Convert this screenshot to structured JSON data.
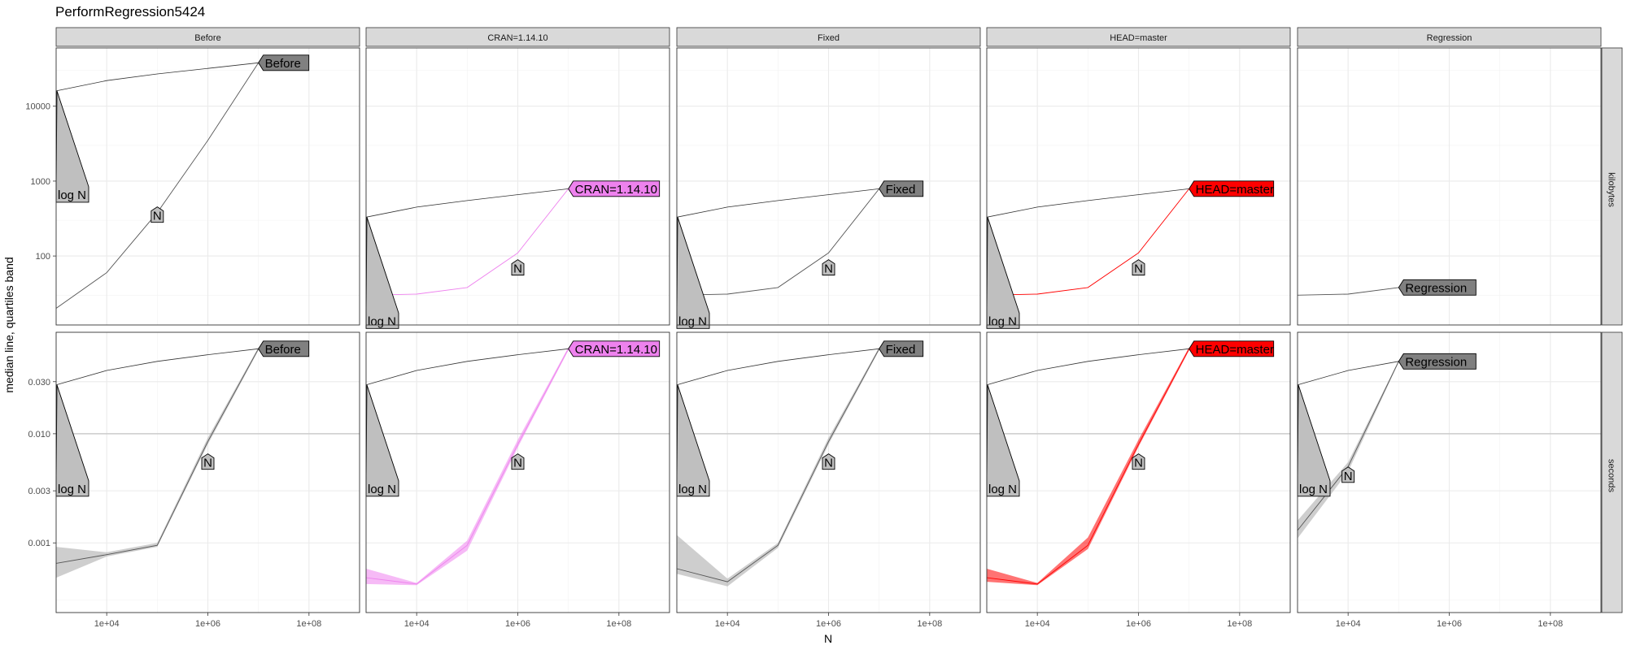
{
  "chart_data": {
    "type": "line",
    "title": "PerformRegression5424",
    "xlabel": "N",
    "ylabel": "median line, quartiles band",
    "x_scale": "log10",
    "xlim": [
      1000,
      1000000000
    ],
    "x_ticks": [
      "1e+04",
      "1e+06",
      "1e+08"
    ],
    "x_tick_values": [
      10000,
      1000000,
      100000000
    ],
    "grid": true,
    "facet_columns": [
      "Before",
      "CRAN=1.14.10",
      "Fixed",
      "HEAD=master",
      "Regression"
    ],
    "facet_rows": [
      "kilobytes",
      "seconds"
    ],
    "colors": {
      "Before": "#808080",
      "CRAN=1.14.10": "#ee82ee",
      "Fixed": "#808080",
      "HEAD=master": "#ff0000",
      "Regression": "#808080",
      "strip_fill": "#d9d9d9",
      "gray_line": "#555555",
      "gray_band": "#a6a6a6"
    },
    "rows": {
      "kilobytes": {
        "y_scale": "log10",
        "ylim": [
          12,
          60000
        ],
        "y_ticks": [
          "100",
          "1000",
          "10000"
        ],
        "y_tick_values": [
          100,
          1000,
          10000
        ],
        "hline": null
      },
      "seconds": {
        "y_scale": "log10",
        "ylim": [
          0.00023,
          0.085
        ],
        "y_ticks": [
          "0.001",
          "0.003",
          "0.010",
          "0.030"
        ],
        "y_tick_values": [
          0.001,
          0.003,
          0.01,
          0.03
        ],
        "hline": 0.01
      }
    },
    "panels": [
      {
        "col": "Before",
        "row": "kilobytes",
        "median": {
          "x": [
            1000,
            10000,
            100000,
            1000000,
            10000000
          ],
          "y": [
            20,
            60,
            380,
            3500,
            38000
          ]
        },
        "band": null,
        "ref_line": {
          "x": [
            1000,
            10000,
            100000,
            1000000,
            10000000
          ],
          "y": [
            16000,
            22000,
            27000,
            32000,
            38000
          ]
        },
        "log_n_label": {
          "text": "log N",
          "x": 1000,
          "y": 16000
        },
        "n_label": {
          "text": "N",
          "x": 100000,
          "y": 380
        },
        "series_label": {
          "text": "Before",
          "x": 10000000,
          "y": 38000
        }
      },
      {
        "col": "CRAN=1.14.10",
        "row": "kilobytes",
        "median": {
          "x": [
            1000,
            10000,
            100000,
            1000000,
            10000000
          ],
          "y": [
            30,
            31,
            38,
            110,
            790
          ]
        },
        "band": null,
        "ref_line": {
          "x": [
            1000,
            10000,
            100000,
            1000000,
            10000000
          ],
          "y": [
            330,
            450,
            550,
            660,
            790
          ]
        },
        "log_n_label": {
          "text": "log N",
          "x": 1000,
          "y": 330
        },
        "n_label": {
          "text": "N",
          "x": 1000000,
          "y": 75
        },
        "series_label": {
          "text": "CRAN=1.14.10",
          "x": 10000000,
          "y": 790
        }
      },
      {
        "col": "Fixed",
        "row": "kilobytes",
        "median": {
          "x": [
            1000,
            10000,
            100000,
            1000000,
            10000000
          ],
          "y": [
            30,
            31,
            38,
            110,
            790
          ]
        },
        "band": null,
        "ref_line": {
          "x": [
            1000,
            10000,
            100000,
            1000000,
            10000000
          ],
          "y": [
            330,
            450,
            550,
            660,
            790
          ]
        },
        "log_n_label": {
          "text": "log N",
          "x": 1000,
          "y": 330
        },
        "n_label": {
          "text": "N",
          "x": 1000000,
          "y": 75
        },
        "series_label": {
          "text": "Fixed",
          "x": 10000000,
          "y": 790
        }
      },
      {
        "col": "HEAD=master",
        "row": "kilobytes",
        "median": {
          "x": [
            1000,
            10000,
            100000,
            1000000,
            10000000
          ],
          "y": [
            30,
            31,
            38,
            110,
            790
          ]
        },
        "band": null,
        "ref_line": {
          "x": [
            1000,
            10000,
            100000,
            1000000,
            10000000
          ],
          "y": [
            330,
            450,
            550,
            660,
            790
          ]
        },
        "log_n_label": {
          "text": "log N",
          "x": 1000,
          "y": 330
        },
        "n_label": {
          "text": "N",
          "x": 1000000,
          "y": 75
        },
        "series_label": {
          "text": "HEAD=master",
          "x": 10000000,
          "y": 790
        }
      },
      {
        "col": "Regression",
        "row": "kilobytes",
        "median": {
          "x": [
            1000,
            10000,
            100000
          ],
          "y": [
            30,
            31,
            38
          ]
        },
        "band": null,
        "ref_line": null,
        "log_n_label": null,
        "n_label": null,
        "series_label": {
          "text": "Regression",
          "x": 100000,
          "y": 38
        }
      },
      {
        "col": "Before",
        "row": "seconds",
        "median": {
          "x": [
            1000,
            10000,
            100000,
            1000000,
            10000000
          ],
          "y": [
            0.00065,
            0.00078,
            0.00095,
            0.0085,
            0.06
          ]
        },
        "band": {
          "x": [
            1000,
            10000,
            100000,
            1000000,
            10000000
          ],
          "lo": [
            0.00048,
            0.00075,
            0.00092,
            0.008,
            0.058
          ],
          "hi": [
            0.00092,
            0.00082,
            0.001,
            0.0092,
            0.062
          ]
        },
        "ref_line": {
          "x": [
            1000,
            10000,
            100000,
            1000000,
            10000000
          ],
          "y": [
            0.028,
            0.038,
            0.046,
            0.053,
            0.06
          ]
        },
        "log_n_label": {
          "text": "log N",
          "x": 1000,
          "y": 0.028
        },
        "n_label": {
          "text": "N",
          "x": 1000000,
          "y": 0.0058
        },
        "series_label": {
          "text": "Before",
          "x": 10000000,
          "y": 0.06
        }
      },
      {
        "col": "CRAN=1.14.10",
        "row": "seconds",
        "median": {
          "x": [
            1000,
            10000,
            100000,
            1000000,
            10000000
          ],
          "y": [
            0.00048,
            0.00042,
            0.00095,
            0.008,
            0.06
          ]
        },
        "band": {
          "x": [
            1000,
            10000,
            100000,
            1000000,
            10000000
          ],
          "lo": [
            0.00042,
            0.00041,
            0.00085,
            0.0075,
            0.058
          ],
          "hi": [
            0.00058,
            0.00043,
            0.00105,
            0.0088,
            0.062
          ]
        },
        "ref_line": {
          "x": [
            1000,
            10000,
            100000,
            1000000,
            10000000
          ],
          "y": [
            0.028,
            0.038,
            0.046,
            0.053,
            0.06
          ]
        },
        "log_n_label": {
          "text": "log N",
          "x": 1000,
          "y": 0.028
        },
        "n_label": {
          "text": "N",
          "x": 1000000,
          "y": 0.0058
        },
        "series_label": {
          "text": "CRAN=1.14.10",
          "x": 10000000,
          "y": 0.06
        }
      },
      {
        "col": "Fixed",
        "row": "seconds",
        "median": {
          "x": [
            1000,
            10000,
            100000,
            1000000,
            10000000
          ],
          "y": [
            0.00058,
            0.00044,
            0.00095,
            0.0085,
            0.06
          ]
        },
        "band": {
          "x": [
            1000,
            10000,
            100000,
            1000000,
            10000000
          ],
          "lo": [
            0.00052,
            0.0004,
            0.0009,
            0.008,
            0.058
          ],
          "hi": [
            0.00118,
            0.00047,
            0.001,
            0.0092,
            0.062
          ]
        },
        "ref_line": {
          "x": [
            1000,
            10000,
            100000,
            1000000,
            10000000
          ],
          "y": [
            0.028,
            0.038,
            0.046,
            0.053,
            0.06
          ]
        },
        "log_n_label": {
          "text": "log N",
          "x": 1000,
          "y": 0.028
        },
        "n_label": {
          "text": "N",
          "x": 1000000,
          "y": 0.0058
        },
        "series_label": {
          "text": "Fixed",
          "x": 10000000,
          "y": 0.06
        }
      },
      {
        "col": "HEAD=master",
        "row": "seconds",
        "median": {
          "x": [
            1000,
            10000,
            100000,
            1000000,
            10000000
          ],
          "y": [
            0.00048,
            0.00042,
            0.00095,
            0.008,
            0.06
          ]
        },
        "band": {
          "x": [
            1000,
            10000,
            100000,
            1000000,
            10000000
          ],
          "lo": [
            0.00044,
            0.00041,
            0.00088,
            0.0076,
            0.058
          ],
          "hi": [
            0.00058,
            0.00043,
            0.00112,
            0.0088,
            0.062
          ]
        },
        "ref_line": {
          "x": [
            1000,
            10000,
            100000,
            1000000,
            10000000
          ],
          "y": [
            0.028,
            0.038,
            0.046,
            0.053,
            0.06
          ]
        },
        "log_n_label": {
          "text": "log N",
          "x": 1000,
          "y": 0.028
        },
        "n_label": {
          "text": "N",
          "x": 1000000,
          "y": 0.0058
        },
        "series_label": {
          "text": "HEAD=master",
          "x": 10000000,
          "y": 0.06
        }
      },
      {
        "col": "Regression",
        "row": "seconds",
        "median": {
          "x": [
            1000,
            10000,
            100000
          ],
          "y": [
            0.0013,
            0.005,
            0.046
          ]
        },
        "band": {
          "x": [
            1000,
            10000,
            100000
          ],
          "lo": [
            0.0011,
            0.0045,
            0.045
          ],
          "hi": [
            0.0016,
            0.0055,
            0.047
          ]
        },
        "ref_line": {
          "x": [
            1000,
            10000,
            100000
          ],
          "y": [
            0.028,
            0.038,
            0.046
          ]
        },
        "log_n_label": {
          "text": "log N",
          "x": 1000,
          "y": 0.028
        },
        "n_label": {
          "text": "N",
          "x": 10000,
          "y": 0.0044
        },
        "series_label": {
          "text": "Regression",
          "x": 100000,
          "y": 0.046
        }
      }
    ]
  }
}
